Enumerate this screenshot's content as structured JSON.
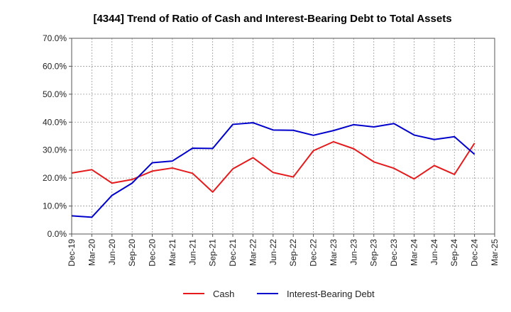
{
  "chart_data": {
    "type": "line",
    "title": "[4344]  Trend of Ratio of Cash and Interest-Bearing Debt to Total Assets",
    "xlabel": "",
    "ylabel": "",
    "ylim": [
      0,
      70
    ],
    "y_ticks": [
      "0.0%",
      "10.0%",
      "20.0%",
      "30.0%",
      "40.0%",
      "50.0%",
      "60.0%",
      "70.0%"
    ],
    "y_tick_values": [
      0,
      10,
      20,
      30,
      40,
      50,
      60,
      70
    ],
    "x_tick_labels": [
      "Dec-19",
      "Mar-20",
      "Jun-20",
      "Sep-20",
      "Dec-20",
      "Mar-21",
      "Jun-21",
      "Sep-21",
      "Dec-21",
      "Mar-22",
      "Jun-22",
      "Sep-22",
      "Dec-22",
      "Mar-23",
      "Jun-23",
      "Sep-23",
      "Dec-23",
      "Mar-24",
      "Jun-24",
      "Sep-24",
      "Dec-24",
      "Mar-25"
    ],
    "grid": true,
    "legend_position": "bottom",
    "x": [
      "Dec-19",
      "Mar-20",
      "Jun-20",
      "Sep-20",
      "Dec-20",
      "Mar-21",
      "Jun-21",
      "Sep-21",
      "Dec-21",
      "Mar-22",
      "Jun-22",
      "Sep-22",
      "Dec-22",
      "Mar-23",
      "Jun-23",
      "Sep-23",
      "Dec-23",
      "Mar-24",
      "Jun-24",
      "Sep-24",
      "Dec-24"
    ],
    "series": [
      {
        "name": "Cash",
        "color": "#e41a1c",
        "values": [
          21.8,
          23.0,
          18.2,
          19.5,
          22.5,
          23.6,
          21.7,
          15.0,
          23.3,
          27.3,
          22.0,
          20.4,
          29.8,
          33.0,
          30.5,
          25.8,
          23.5,
          19.7,
          24.5,
          21.3,
          32.5
        ]
      },
      {
        "name": "Interest-Bearing Debt",
        "color": "#0000cc",
        "values": [
          6.5,
          6.0,
          13.8,
          18.2,
          25.5,
          26.1,
          30.7,
          30.6,
          39.2,
          39.8,
          37.2,
          37.1,
          35.3,
          37.0,
          39.1,
          38.3,
          39.5,
          35.4,
          33.8,
          34.8,
          28.5
        ]
      }
    ]
  }
}
